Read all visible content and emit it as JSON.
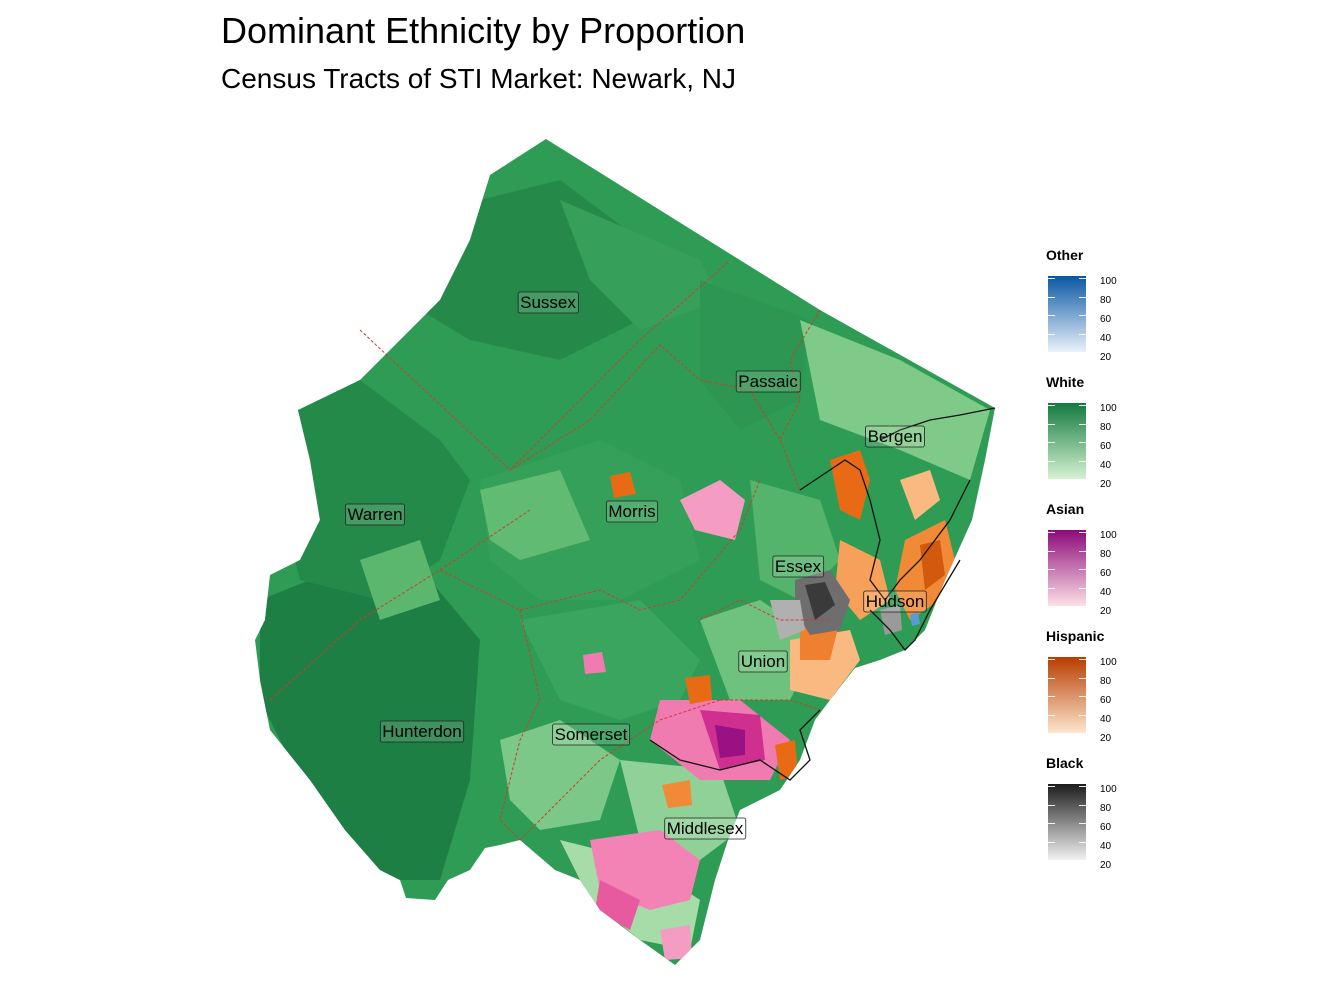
{
  "title": "Dominant Ethnicity by Proportion",
  "subtitle": "Census Tracts of STI Market: Newark, NJ",
  "counties": [
    {
      "name": "Sussex"
    },
    {
      "name": "Passaic"
    },
    {
      "name": "Bergen"
    },
    {
      "name": "Warren"
    },
    {
      "name": "Morris"
    },
    {
      "name": "Essex"
    },
    {
      "name": "Hudson"
    },
    {
      "name": "Union"
    },
    {
      "name": "Hunterdon"
    },
    {
      "name": "Somerset"
    },
    {
      "name": "Middlesex"
    }
  ],
  "legend": [
    {
      "title": "Other",
      "low": "#eaf2fb",
      "high": "#0a57a3",
      "ticks": [
        "100",
        "80",
        "60",
        "40",
        "20"
      ]
    },
    {
      "title": "White",
      "low": "#d6f2d2",
      "high": "#137a3f",
      "ticks": [
        "100",
        "80",
        "60",
        "40",
        "20"
      ]
    },
    {
      "title": "Asian",
      "low": "#fde0e6",
      "high": "#8b0a7a",
      "ticks": [
        "100",
        "80",
        "60",
        "40",
        "20"
      ]
    },
    {
      "title": "Hispanic",
      "low": "#fde6cf",
      "high": "#b83d00",
      "ticks": [
        "100",
        "80",
        "60",
        "40",
        "20"
      ]
    },
    {
      "title": "Black",
      "low": "#f2f2f2",
      "high": "#1c1c1c",
      "ticks": [
        "100",
        "80",
        "60",
        "40",
        "20"
      ]
    }
  ]
}
